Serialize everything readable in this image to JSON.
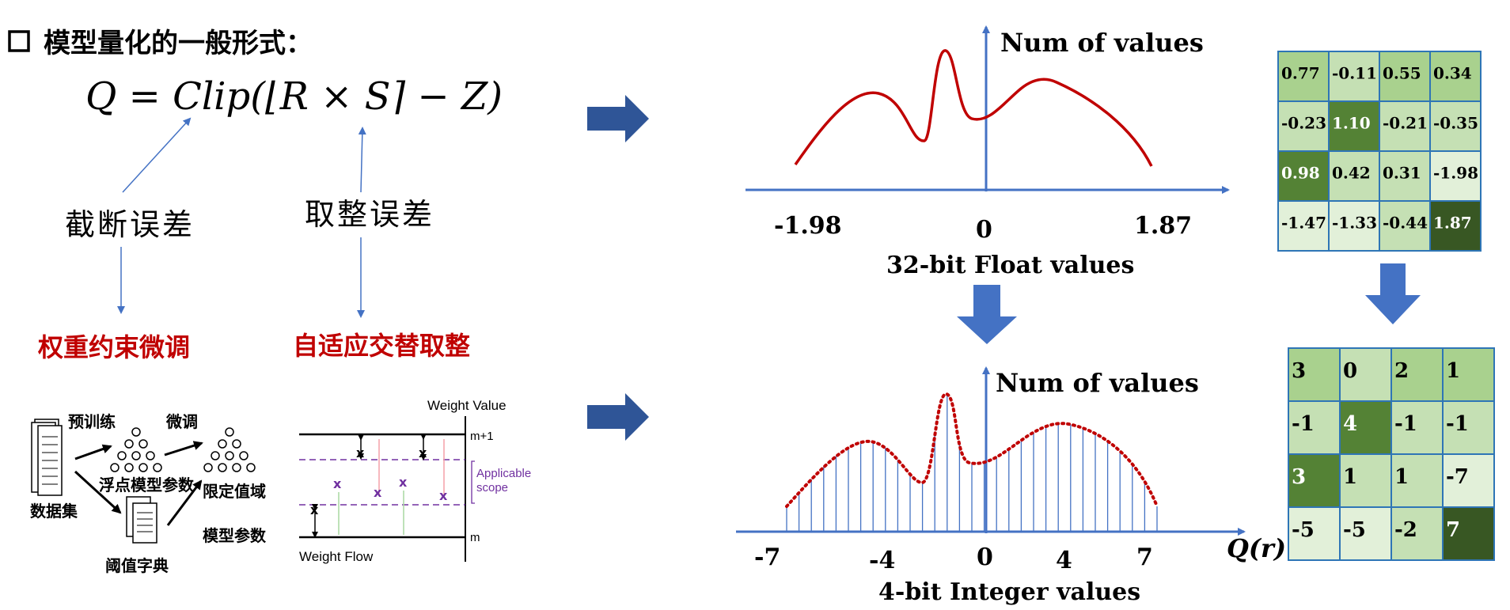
{
  "heading": {
    "bullet": "□",
    "text": "模型量化的一般形式："
  },
  "formula": "Q = Clip(⌊R × S⌉ − Z)",
  "error_labels": {
    "truncation": "截断误差",
    "rounding": "取整误差"
  },
  "methods": {
    "left": "权重约束微调",
    "right": "自适应交替取整"
  },
  "pipeline": {
    "dataset": "数据集",
    "pretrain": "预训练",
    "float_params": "浮点模型参数",
    "finetune": "微调",
    "limited_domain": "限定值域",
    "model_params": "模型参数",
    "threshold_dict": "阈值字典"
  },
  "weight_diagram": {
    "title": "Weight Value",
    "upper": "m+1",
    "lower": "m",
    "scope_line1": "Applicable",
    "scope_line2": "scope",
    "flow": "Weight Flow"
  },
  "float_chart": {
    "ylabel": "Num of values",
    "min_label": "-1.98",
    "zero_label": "0",
    "max_label": "1.87",
    "caption": "32-bit Float values"
  },
  "int_chart": {
    "ylabel": "Num of values",
    "ticks": [
      "-7",
      "-4",
      "0",
      "4",
      "7"
    ],
    "xlabel": "Q(r)",
    "caption": "4-bit Integer values"
  },
  "float_matrix": [
    [
      "0.77",
      "-0.11",
      "0.55",
      "0.34"
    ],
    [
      "-0.23",
      "1.10",
      "-0.21",
      "-0.35"
    ],
    [
      "0.98",
      "0.42",
      "0.31",
      "-1.98"
    ],
    [
      "-1.47",
      "-1.33",
      "-0.44",
      "1.87"
    ]
  ],
  "float_matrix_shades": [
    [
      "#a9d18e",
      "#c5e0b4",
      "#a9d18e",
      "#a9d18e"
    ],
    [
      "#c5e0b4",
      "#548235",
      "#c5e0b4",
      "#c5e0b4"
    ],
    [
      "#548235",
      "#c5e0b4",
      "#c5e0b4",
      "#e2f0d9"
    ],
    [
      "#e2f0d9",
      "#e2f0d9",
      "#c5e0b4",
      "#385723"
    ]
  ],
  "int_matrix": [
    [
      "3",
      "0",
      "2",
      "1"
    ],
    [
      "-1",
      "4",
      "-1",
      "-1"
    ],
    [
      "3",
      "1",
      "1",
      "-7"
    ],
    [
      "-5",
      "-5",
      "-2",
      "7"
    ]
  ],
  "int_matrix_shades": [
    [
      "#a9d18e",
      "#c5e0b4",
      "#a9d18e",
      "#a9d18e"
    ],
    [
      "#c5e0b4",
      "#548235",
      "#c5e0b4",
      "#c5e0b4"
    ],
    [
      "#548235",
      "#c5e0b4",
      "#c5e0b4",
      "#e2f0d9"
    ],
    [
      "#e2f0d9",
      "#e2f0d9",
      "#c5e0b4",
      "#385723"
    ]
  ],
  "colors": {
    "accent_red": "#c00000",
    "axis_blue": "#4472c4",
    "arrow_navy": "#2f5597",
    "curve_red": "#c00000",
    "grid_border": "#2e75b6",
    "purple": "#7030a0"
  }
}
